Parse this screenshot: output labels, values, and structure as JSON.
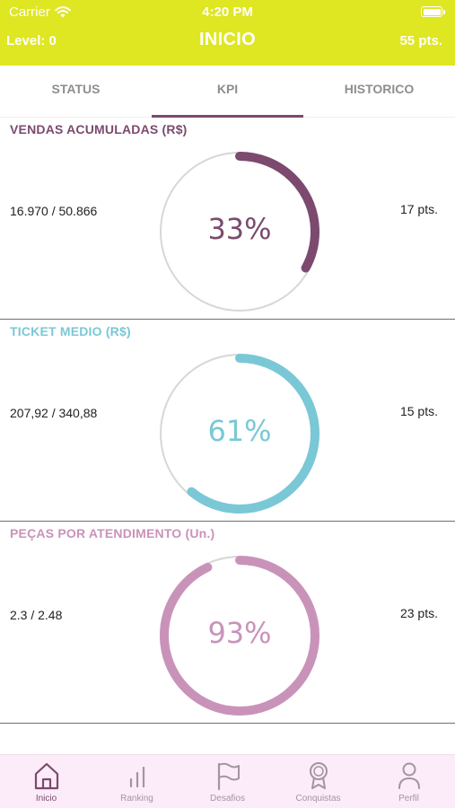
{
  "status_bar": {
    "carrier": "Carrier",
    "time": "4:20 PM"
  },
  "header": {
    "level": "Level: 0",
    "title": "INICIO",
    "points": "55 pts."
  },
  "tabs": [
    {
      "label": "STATUS",
      "active": false
    },
    {
      "label": "KPI",
      "active": true
    },
    {
      "label": "HISTORICO",
      "active": false
    }
  ],
  "kpis": [
    {
      "title": "VENDAS ACUMULADAS (R$)",
      "progress_text": "16.970 / 50.866",
      "percent_label": "33%",
      "percent": 33,
      "points": "17 pts.",
      "color": "#7b4a6e"
    },
    {
      "title": "TICKET MEDIO (R$)",
      "progress_text": "207,92 / 340,88",
      "percent_label": "61%",
      "percent": 61,
      "points": "15 pts.",
      "color": "#7ac8d6"
    },
    {
      "title": "PEÇAS POR ATENDIMENTO (Un.)",
      "progress_text": "2.3 / 2.48",
      "percent_label": "93%",
      "percent": 93,
      "points": "23 pts.",
      "color": "#c993b9"
    }
  ],
  "tab_bar": [
    {
      "label": "Inicio",
      "icon": "home-icon",
      "active": true
    },
    {
      "label": "Ranking",
      "icon": "bar-chart-icon",
      "active": false
    },
    {
      "label": "Desafios",
      "icon": "flag-icon",
      "active": false
    },
    {
      "label": "Conquistas",
      "icon": "award-icon",
      "active": false
    },
    {
      "label": "Perfil",
      "icon": "person-icon",
      "active": false
    }
  ],
  "colors": {
    "header": "#dfe622",
    "accent": "#7b4a6e",
    "tab_bar_bg": "#fcecfa"
  }
}
